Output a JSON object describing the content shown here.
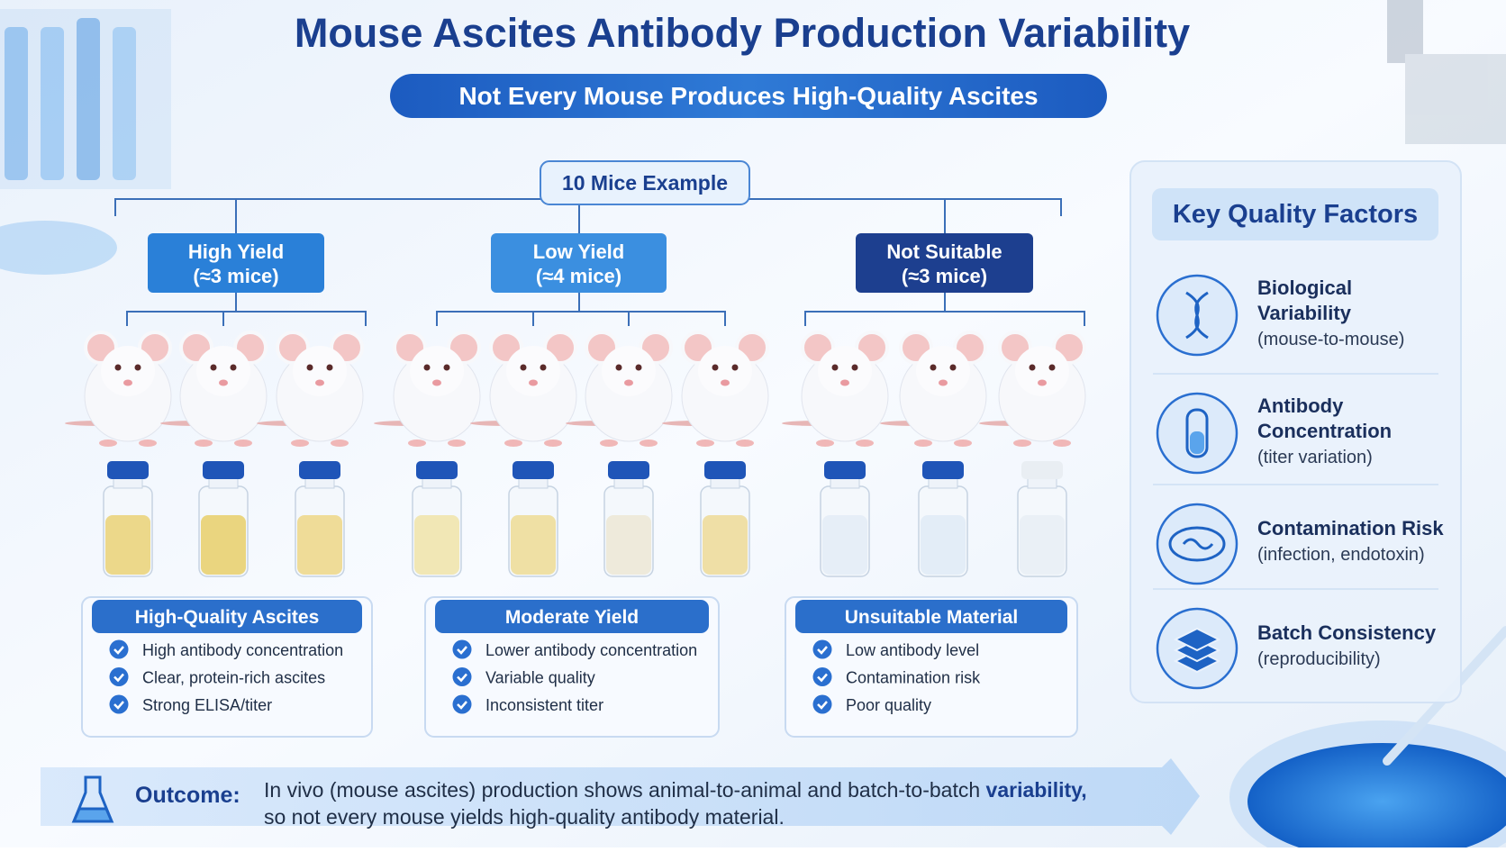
{
  "title": "Mouse Ascites Antibody Production Variability",
  "subtitle": "Not Every Mouse Produces High-Quality Ascites",
  "root": "10 Mice Example",
  "groups": [
    {
      "label": "High Yield",
      "count": "(≈3 mice)",
      "result": "High-Quality Ascites",
      "points": [
        "High antibody concentration",
        "Clear, protein-rich ascites",
        "Strong ELISA/titer"
      ]
    },
    {
      "label": "Low Yield",
      "count": "(≈4 mice)",
      "result": "Moderate Yield",
      "points": [
        "Lower antibody concentration",
        "Variable quality",
        "Inconsistent titer"
      ]
    },
    {
      "label": "Not Suitable",
      "count": "(≈3 mice)",
      "result": "Unsuitable Material",
      "points": [
        "Low antibody level",
        "Contamination risk",
        "Poor quality"
      ]
    }
  ],
  "factors": {
    "title": "Key Quality Factors",
    "items": [
      {
        "name": [
          "Biological",
          "Variability"
        ],
        "detail": "(mouse-to-mouse)"
      },
      {
        "name": [
          "Antibody",
          "Concentration"
        ],
        "detail": "(titer variation)"
      },
      {
        "name": [
          "Contamination Risk"
        ],
        "detail": "(infection, endotoxin)"
      },
      {
        "name": [
          "Batch Consistency"
        ],
        "detail": "(reproducibility)"
      }
    ]
  },
  "outcome": {
    "label": "Outcome:",
    "text": [
      "In vivo (mouse ascites) production shows animal-to-animal and batch-to-batch ",
      "variability,",
      "so not every mouse yields high-quality antibody material."
    ]
  }
}
